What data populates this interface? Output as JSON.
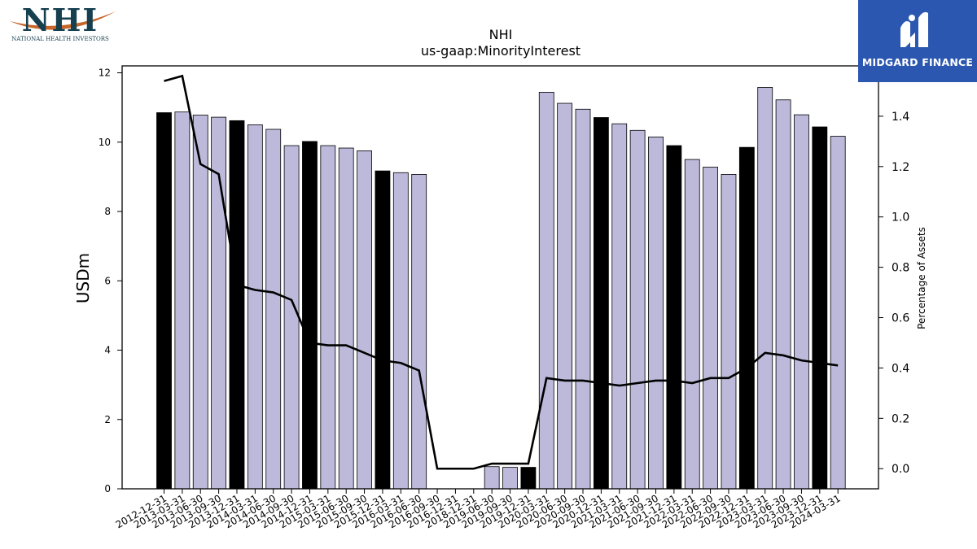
{
  "logos": {
    "left": {
      "text": "NHI",
      "subtext": "NATIONAL HEALTH INVESTORS"
    },
    "right": {
      "text": "MIDGARD FINANCE"
    }
  },
  "colors": {
    "bar_default": "#bcb9da",
    "bar_highlight": "#000000",
    "line": "#000000",
    "brand_blue": "#2b57b0",
    "nhi_teal": "#163f4f",
    "nhi_orange": "#c8662a"
  },
  "chart_data": {
    "type": "bar",
    "title": "NHI",
    "subtitle": "us-gaap:MinorityInterest",
    "ylabel": "USDm",
    "y2label": "Percentage of Assets",
    "ylim": [
      0,
      12.2
    ],
    "y2lim": [
      -0.08,
      1.6
    ],
    "yticks": [
      "0",
      "2",
      "4",
      "6",
      "8",
      "10",
      "12"
    ],
    "y2ticks": [
      "0.0",
      "0.2",
      "0.4",
      "0.6",
      "0.8",
      "1.0",
      "1.2",
      "1.4"
    ],
    "categories": [
      "2012-12-31",
      "2013-03-31",
      "2013-06-30",
      "2013-09-30",
      "2013-12-31",
      "2014-03-31",
      "2014-06-30",
      "2014-09-30",
      "2014-12-31",
      "2015-03-31",
      "2015-06-30",
      "2015-09-30",
      "2015-12-31",
      "2016-03-31",
      "2016-06-30",
      "2016-09-30",
      "2016-12-31",
      "2018-12-31",
      "2019-06-30",
      "2019-09-30",
      "2019-12-31",
      "2020-03-31",
      "2020-06-30",
      "2020-09-30",
      "2020-12-31",
      "2021-03-31",
      "2021-06-30",
      "2021-09-30",
      "2021-12-31",
      "2022-03-31",
      "2022-06-30",
      "2022-09-30",
      "2022-12-31",
      "2023-03-31",
      "2023-06-30",
      "2023-09-30",
      "2023-12-31",
      "2024-03-31"
    ],
    "series": [
      {
        "kind": "bar",
        "values": [
          10.85,
          10.87,
          10.78,
          10.72,
          10.62,
          10.5,
          10.37,
          9.9,
          10.02,
          9.9,
          9.83,
          9.75,
          9.17,
          9.12,
          9.07,
          0,
          0,
          0,
          0.64,
          0.62,
          0.62,
          11.44,
          11.12,
          10.95,
          10.71,
          10.53,
          10.34,
          10.15,
          9.9,
          9.5,
          9.28,
          9.07,
          9.85,
          11.58,
          11.22,
          10.79,
          10.44,
          10.17
        ]
      },
      {
        "kind": "line",
        "axis": "right",
        "values": [
          1.54,
          1.56,
          1.21,
          1.17,
          0.73,
          0.71,
          0.7,
          0.67,
          0.5,
          0.49,
          0.49,
          0.46,
          0.43,
          0.42,
          0.39,
          0.0,
          0.0,
          0.0,
          0.02,
          0.02,
          0.02,
          0.36,
          0.35,
          0.35,
          0.34,
          0.33,
          0.34,
          0.35,
          0.35,
          0.34,
          0.36,
          0.36,
          0.4,
          0.46,
          0.45,
          0.43,
          0.42,
          0.41
        ]
      }
    ],
    "highlight_indices": [
      0,
      4,
      8,
      12,
      20,
      24,
      28,
      32,
      36
    ],
    "grid": false,
    "legend": "none"
  }
}
